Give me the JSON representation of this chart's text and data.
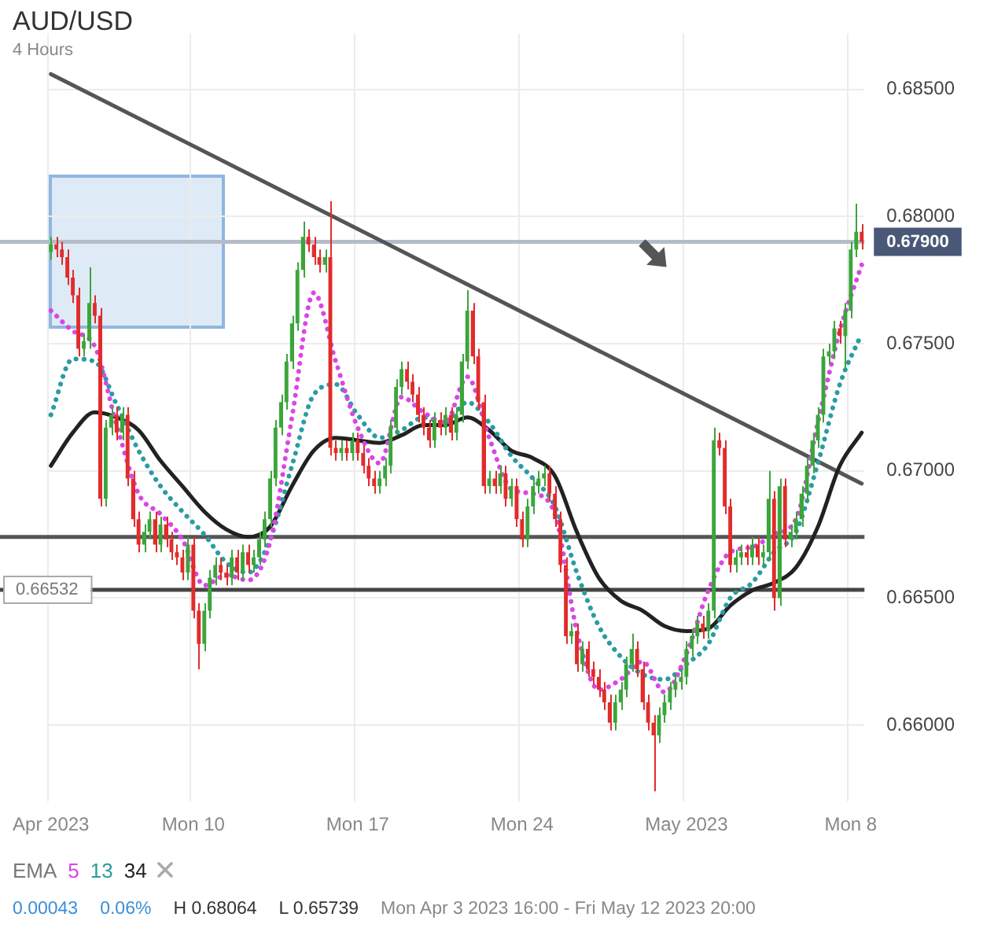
{
  "chart_data": {
    "type": "candlestick",
    "title": "AUD/USD",
    "subtitle": "4 Hours",
    "categories": [
      "Apr 2023",
      null,
      null,
      null,
      null,
      null,
      null,
      null,
      null,
      null,
      null,
      null,
      null,
      null,
      null,
      null,
      null,
      null,
      null,
      null,
      null,
      null,
      null,
      null,
      null,
      null,
      "Mon 10",
      null,
      null,
      null,
      null,
      null,
      null,
      null,
      null,
      null,
      null,
      null,
      null,
      null,
      null,
      null,
      null,
      null,
      null,
      null,
      null,
      null,
      null,
      null,
      null,
      null,
      null,
      null,
      null,
      null,
      "Mon 17",
      null,
      null,
      null,
      null,
      null,
      null,
      null,
      null,
      null,
      null,
      null,
      null,
      null,
      null,
      null,
      null,
      null,
      null,
      null,
      null,
      null,
      null,
      null,
      null,
      null,
      null,
      null,
      null,
      null,
      "Mon 24",
      null,
      null,
      null,
      null,
      null,
      null,
      null,
      null,
      null,
      null,
      null,
      null,
      null,
      null,
      null,
      null,
      null,
      null,
      null,
      null,
      null,
      null,
      null,
      null,
      null,
      null,
      null,
      null,
      null,
      "May 2023",
      null,
      null,
      null,
      null,
      null,
      null,
      null,
      null,
      null,
      null,
      null,
      null,
      null,
      null,
      null,
      null,
      null,
      null,
      null,
      null,
      null,
      null,
      null,
      null,
      null,
      null,
      null,
      null,
      null,
      "Mon 8",
      null,
      null
    ],
    "ohlc": [
      [
        0.6786,
        0.6792,
        0.6783,
        0.6789
      ],
      [
        0.6789,
        0.6792,
        0.6784,
        0.6787
      ],
      [
        0.6787,
        0.679,
        0.6781,
        0.6784
      ],
      [
        0.6784,
        0.6787,
        0.6773,
        0.6776
      ],
      [
        0.6776,
        0.6779,
        0.6766,
        0.6769
      ],
      [
        0.6769,
        0.6772,
        0.6745,
        0.6748
      ],
      [
        0.6748,
        0.6754,
        0.6745,
        0.6751
      ],
      [
        0.6751,
        0.678,
        0.6748,
        0.6766
      ],
      [
        0.6766,
        0.6769,
        0.6758,
        0.6761
      ],
      [
        0.6761,
        0.6764,
        0.6686,
        0.6689
      ],
      [
        0.6689,
        0.672,
        0.6686,
        0.6717
      ],
      [
        0.6717,
        0.6725,
        0.6714,
        0.6722
      ],
      [
        0.6722,
        0.6725,
        0.6712,
        0.6715
      ],
      [
        0.6715,
        0.6725,
        0.6712,
        0.6722
      ],
      [
        0.6722,
        0.6725,
        0.6694,
        0.6697
      ],
      [
        0.6697,
        0.67,
        0.6678,
        0.6681
      ],
      [
        0.6681,
        0.6684,
        0.6668,
        0.6671
      ],
      [
        0.6671,
        0.6679,
        0.6668,
        0.6676
      ],
      [
        0.6676,
        0.6684,
        0.6673,
        0.6681
      ],
      [
        0.6681,
        0.6684,
        0.6668,
        0.6671
      ],
      [
        0.6671,
        0.6682,
        0.6668,
        0.6679
      ],
      [
        0.6679,
        0.6682,
        0.667,
        0.6673
      ],
      [
        0.6673,
        0.6676,
        0.6665,
        0.6668
      ],
      [
        0.6668,
        0.6671,
        0.6663,
        0.6666
      ],
      [
        0.6666,
        0.6669,
        0.6657,
        0.666
      ],
      [
        0.666,
        0.6674,
        0.6657,
        0.6671
      ],
      [
        0.6671,
        0.6674,
        0.6642,
        0.6645
      ],
      [
        0.6645,
        0.6648,
        0.6622,
        0.6632
      ],
      [
        0.6632,
        0.6648,
        0.6629,
        0.6645
      ],
      [
        0.6645,
        0.6661,
        0.6642,
        0.6658
      ],
      [
        0.6658,
        0.6666,
        0.6655,
        0.6663
      ],
      [
        0.6663,
        0.6666,
        0.6657,
        0.666
      ],
      [
        0.666,
        0.6663,
        0.6655,
        0.6658
      ],
      [
        0.6658,
        0.6669,
        0.6655,
        0.6666
      ],
      [
        0.6666,
        0.6669,
        0.6657,
        0.666
      ],
      [
        0.666,
        0.6671,
        0.6657,
        0.6668
      ],
      [
        0.6668,
        0.6671,
        0.666,
        0.6663
      ],
      [
        0.6663,
        0.6669,
        0.666,
        0.6666
      ],
      [
        0.6666,
        0.6676,
        0.6663,
        0.6673
      ],
      [
        0.6673,
        0.6684,
        0.667,
        0.6681
      ],
      [
        0.6681,
        0.67,
        0.6678,
        0.6697
      ],
      [
        0.6697,
        0.672,
        0.6694,
        0.6717
      ],
      [
        0.6717,
        0.673,
        0.6714,
        0.6727
      ],
      [
        0.6727,
        0.6746,
        0.6724,
        0.6743
      ],
      [
        0.6743,
        0.6761,
        0.674,
        0.6758
      ],
      [
        0.6758,
        0.6782,
        0.6755,
        0.6779
      ],
      [
        0.6779,
        0.6798,
        0.6776,
        0.6792
      ],
      [
        0.6792,
        0.6795,
        0.6786,
        0.6789
      ],
      [
        0.6789,
        0.6792,
        0.6781,
        0.6784
      ],
      [
        0.6784,
        0.6787,
        0.6778,
        0.6781
      ],
      [
        0.6781,
        0.6787,
        0.6778,
        0.6784
      ],
      [
        0.6784,
        0.6806,
        0.6706,
        0.6709
      ],
      [
        0.6709,
        0.6712,
        0.6704,
        0.6707
      ],
      [
        0.6707,
        0.6712,
        0.6704,
        0.6709
      ],
      [
        0.6709,
        0.6712,
        0.6704,
        0.6707
      ],
      [
        0.6707,
        0.6715,
        0.6704,
        0.6712
      ],
      [
        0.6712,
        0.6715,
        0.6704,
        0.6707
      ],
      [
        0.6707,
        0.671,
        0.6699,
        0.6702
      ],
      [
        0.6702,
        0.6705,
        0.6694,
        0.6697
      ],
      [
        0.6697,
        0.67,
        0.6691,
        0.6694
      ],
      [
        0.6694,
        0.67,
        0.6691,
        0.6697
      ],
      [
        0.6697,
        0.6705,
        0.6694,
        0.6702
      ],
      [
        0.6702,
        0.672,
        0.6699,
        0.6717
      ],
      [
        0.6717,
        0.6736,
        0.6714,
        0.6733
      ],
      [
        0.6733,
        0.6743,
        0.673,
        0.674
      ],
      [
        0.674,
        0.6743,
        0.6732,
        0.6735
      ],
      [
        0.6735,
        0.6738,
        0.6727,
        0.673
      ],
      [
        0.673,
        0.6733,
        0.6719,
        0.6722
      ],
      [
        0.6722,
        0.6725,
        0.6714,
        0.6717
      ],
      [
        0.6717,
        0.672,
        0.6709,
        0.6712
      ],
      [
        0.6712,
        0.6723,
        0.6709,
        0.672
      ],
      [
        0.672,
        0.6723,
        0.6714,
        0.6717
      ],
      [
        0.6717,
        0.6725,
        0.6714,
        0.6722
      ],
      [
        0.6722,
        0.6725,
        0.6712,
        0.6715
      ],
      [
        0.6715,
        0.6725,
        0.6712,
        0.6722
      ],
      [
        0.6722,
        0.6746,
        0.6719,
        0.6743
      ],
      [
        0.6743,
        0.6771,
        0.674,
        0.6763
      ],
      [
        0.6763,
        0.6766,
        0.6742,
        0.6745
      ],
      [
        0.6745,
        0.6748,
        0.6724,
        0.6727
      ],
      [
        0.6727,
        0.673,
        0.6691,
        0.6694
      ],
      [
        0.6694,
        0.67,
        0.6691,
        0.6697
      ],
      [
        0.6697,
        0.67,
        0.6691,
        0.6694
      ],
      [
        0.6694,
        0.6702,
        0.6691,
        0.6699
      ],
      [
        0.6699,
        0.6702,
        0.6686,
        0.6689
      ],
      [
        0.6689,
        0.6697,
        0.6686,
        0.6694
      ],
      [
        0.6694,
        0.6697,
        0.6678,
        0.6681
      ],
      [
        0.6681,
        0.6684,
        0.667,
        0.6673
      ],
      [
        0.6673,
        0.6689,
        0.667,
        0.6686
      ],
      [
        0.6686,
        0.6697,
        0.6683,
        0.6694
      ],
      [
        0.6694,
        0.67,
        0.6691,
        0.6697
      ],
      [
        0.6697,
        0.6702,
        0.6694,
        0.6699
      ],
      [
        0.6699,
        0.6702,
        0.6688,
        0.6691
      ],
      [
        0.6691,
        0.6694,
        0.6678,
        0.6681
      ],
      [
        0.6681,
        0.6684,
        0.666,
        0.6663
      ],
      [
        0.6663,
        0.6666,
        0.6632,
        0.6635
      ],
      [
        0.6635,
        0.664,
        0.6632,
        0.6637
      ],
      [
        0.6637,
        0.664,
        0.6621,
        0.6624
      ],
      [
        0.6624,
        0.6633,
        0.6621,
        0.663
      ],
      [
        0.663,
        0.6633,
        0.6619,
        0.6622
      ],
      [
        0.6622,
        0.6625,
        0.6616,
        0.6619
      ],
      [
        0.6619,
        0.6622,
        0.6611,
        0.6614
      ],
      [
        0.6614,
        0.6617,
        0.6606,
        0.6609
      ],
      [
        0.6609,
        0.6612,
        0.6598,
        0.6601
      ],
      [
        0.6601,
        0.6612,
        0.6598,
        0.6609
      ],
      [
        0.6609,
        0.6617,
        0.6606,
        0.6614
      ],
      [
        0.6614,
        0.6627,
        0.6611,
        0.6624
      ],
      [
        0.6624,
        0.6636,
        0.6621,
        0.663
      ],
      [
        0.663,
        0.6633,
        0.6619,
        0.6622
      ],
      [
        0.6622,
        0.6625,
        0.6606,
        0.6609
      ],
      [
        0.6609,
        0.6612,
        0.6598,
        0.6601
      ],
      [
        0.6601,
        0.6604,
        0.6574,
        0.6596
      ],
      [
        0.6596,
        0.6607,
        0.6593,
        0.6604
      ],
      [
        0.6604,
        0.6612,
        0.6601,
        0.6609
      ],
      [
        0.6609,
        0.6617,
        0.6606,
        0.6614
      ],
      [
        0.6614,
        0.662,
        0.6611,
        0.6617
      ],
      [
        0.6617,
        0.6622,
        0.6614,
        0.6619
      ],
      [
        0.6619,
        0.6633,
        0.6616,
        0.663
      ],
      [
        0.663,
        0.6638,
        0.6627,
        0.6635
      ],
      [
        0.6635,
        0.6643,
        0.6632,
        0.664
      ],
      [
        0.664,
        0.6643,
        0.6634,
        0.6637
      ],
      [
        0.6637,
        0.6648,
        0.6634,
        0.6645
      ],
      [
        0.6645,
        0.6717,
        0.6642,
        0.6712
      ],
      [
        0.6712,
        0.6715,
        0.6706,
        0.6709
      ],
      [
        0.6709,
        0.6712,
        0.6683,
        0.6686
      ],
      [
        0.6686,
        0.6689,
        0.666,
        0.6663
      ],
      [
        0.6663,
        0.6669,
        0.666,
        0.6666
      ],
      [
        0.6666,
        0.6671,
        0.6663,
        0.6668
      ],
      [
        0.6668,
        0.6671,
        0.6663,
        0.6666
      ],
      [
        0.6666,
        0.6674,
        0.6663,
        0.6671
      ],
      [
        0.6671,
        0.6674,
        0.6663,
        0.6666
      ],
      [
        0.6666,
        0.6671,
        0.6663,
        0.6668
      ],
      [
        0.6668,
        0.67,
        0.6665,
        0.6689
      ],
      [
        0.6689,
        0.6692,
        0.6645,
        0.665
      ],
      [
        0.665,
        0.6697,
        0.6647,
        0.6694
      ],
      [
        0.6694,
        0.6697,
        0.667,
        0.6673
      ],
      [
        0.6673,
        0.6679,
        0.667,
        0.6676
      ],
      [
        0.6676,
        0.6684,
        0.6673,
        0.6681
      ],
      [
        0.6681,
        0.6694,
        0.6678,
        0.6691
      ],
      [
        0.6691,
        0.6705,
        0.6688,
        0.6702
      ],
      [
        0.6702,
        0.6715,
        0.6699,
        0.6712
      ],
      [
        0.6712,
        0.6725,
        0.6709,
        0.6722
      ],
      [
        0.6722,
        0.6748,
        0.6719,
        0.6745
      ],
      [
        0.6745,
        0.675,
        0.6742,
        0.6747
      ],
      [
        0.6747,
        0.6759,
        0.6744,
        0.6756
      ],
      [
        0.6756,
        0.6759,
        0.675,
        0.6753
      ],
      [
        0.6753,
        0.6766,
        0.674,
        0.6763
      ],
      [
        0.6763,
        0.679,
        0.676,
        0.6787
      ],
      [
        0.6787,
        0.6805,
        0.6784,
        0.6794
      ],
      [
        0.6794,
        0.6797,
        0.6787,
        0.679
      ]
    ],
    "colors": [
      "#3ba53b",
      "#e22b2b",
      "#e22b2b",
      "#e22b2b",
      "#e22b2b",
      "#e22b2b",
      "#3ba53b",
      "#3ba53b",
      "#e22b2b",
      "#e22b2b",
      "#3ba53b",
      "#3ba53b",
      "#e22b2b",
      "#3ba53b",
      "#e22b2b",
      "#e22b2b",
      "#e22b2b",
      "#3ba53b",
      "#3ba53b",
      "#e22b2b",
      "#3ba53b",
      "#e22b2b",
      "#e22b2b",
      "#e22b2b",
      "#e22b2b",
      "#3ba53b",
      "#e22b2b",
      "#e22b2b",
      "#3ba53b",
      "#3ba53b",
      "#3ba53b",
      "#e22b2b",
      "#e22b2b",
      "#3ba53b",
      "#e22b2b",
      "#3ba53b",
      "#e22b2b",
      "#3ba53b",
      "#3ba53b",
      "#3ba53b",
      "#3ba53b",
      "#3ba53b",
      "#3ba53b",
      "#3ba53b",
      "#3ba53b",
      "#3ba53b",
      "#3ba53b",
      "#e22b2b",
      "#e22b2b",
      "#e22b2b",
      "#3ba53b",
      "#e22b2b",
      "#e22b2b",
      "#3ba53b",
      "#e22b2b",
      "#3ba53b",
      "#e22b2b",
      "#e22b2b",
      "#e22b2b",
      "#e22b2b",
      "#3ba53b",
      "#3ba53b",
      "#3ba53b",
      "#3ba53b",
      "#3ba53b",
      "#e22b2b",
      "#e22b2b",
      "#e22b2b",
      "#e22b2b",
      "#e22b2b",
      "#3ba53b",
      "#e22b2b",
      "#3ba53b",
      "#e22b2b",
      "#3ba53b",
      "#3ba53b",
      "#3ba53b",
      "#e22b2b",
      "#e22b2b",
      "#e22b2b",
      "#3ba53b",
      "#e22b2b",
      "#3ba53b",
      "#e22b2b",
      "#3ba53b",
      "#e22b2b",
      "#e22b2b",
      "#3ba53b",
      "#3ba53b",
      "#3ba53b",
      "#3ba53b",
      "#e22b2b",
      "#e22b2b",
      "#e22b2b",
      "#e22b2b",
      "#3ba53b",
      "#e22b2b",
      "#3ba53b",
      "#e22b2b",
      "#e22b2b",
      "#e22b2b",
      "#e22b2b",
      "#e22b2b",
      "#3ba53b",
      "#3ba53b",
      "#3ba53b",
      "#3ba53b",
      "#e22b2b",
      "#e22b2b",
      "#e22b2b",
      "#e22b2b",
      "#3ba53b",
      "#3ba53b",
      "#3ba53b",
      "#3ba53b",
      "#3ba53b",
      "#3ba53b",
      "#3ba53b",
      "#3ba53b",
      "#e22b2b",
      "#3ba53b",
      "#3ba53b",
      "#e22b2b",
      "#e22b2b",
      "#e22b2b",
      "#3ba53b",
      "#3ba53b",
      "#e22b2b",
      "#3ba53b",
      "#e22b2b",
      "#3ba53b",
      "#3ba53b",
      "#e22b2b",
      "#3ba53b",
      "#e22b2b",
      "#3ba53b",
      "#3ba53b",
      "#3ba53b",
      "#3ba53b",
      "#3ba53b",
      "#3ba53b",
      "#3ba53b",
      "#3ba53b",
      "#3ba53b",
      "#e22b2b",
      "#3ba53b",
      "#3ba53b",
      "#3ba53b",
      "#e22b2b"
    ],
    "series": [
      {
        "name": "5",
        "type": "line",
        "color": "#d946e6",
        "line_style": "dotted",
        "values": [
          0.6763,
          null,
          null,
          null,
          0.6755,
          null,
          null,
          null,
          0.6749,
          null,
          null,
          null,
          0.6718,
          null,
          null,
          null,
          0.6691,
          null,
          null,
          null,
          0.6683,
          null,
          null,
          null,
          0.6673,
          null,
          null,
          null,
          0.6655,
          null,
          null,
          null,
          0.6659,
          null,
          null,
          null,
          0.6657,
          null,
          null,
          null,
          0.6672,
          null,
          null,
          null,
          0.6721,
          null,
          null,
          null,
          0.677,
          null,
          null,
          null,
          0.6743,
          null,
          null,
          null,
          0.6717,
          null,
          null,
          null,
          0.6703,
          null,
          null,
          null,
          0.6729,
          null,
          null,
          null,
          0.6723,
          null,
          null,
          null,
          0.6719,
          null,
          null,
          null,
          0.6737,
          null,
          null,
          null,
          0.6713,
          null,
          null,
          null,
          0.6693,
          null,
          null,
          null,
          0.6691,
          null,
          null,
          null,
          0.6683,
          null,
          null,
          null,
          0.6637,
          null,
          null,
          null,
          0.6614,
          null,
          null,
          null,
          0.6618,
          null,
          null,
          null,
          0.6625,
          null,
          null,
          null,
          0.6613,
          null,
          null,
          null,
          0.6628,
          null,
          null,
          null,
          0.6653,
          null,
          null,
          null,
          0.6668,
          null,
          null,
          null,
          0.667,
          null,
          null,
          null,
          0.6675,
          null,
          null,
          null,
          0.6681,
          null,
          null,
          null,
          0.6719,
          null,
          null,
          null,
          0.6755,
          null,
          null,
          null,
          0.6781
        ]
      },
      {
        "name": "13",
        "type": "line",
        "color": "#2a9ca3",
        "line_style": "dotted",
        "values": [
          0.6722,
          null,
          null,
          null,
          0.6744,
          null,
          null,
          null,
          0.6743,
          null,
          null,
          null,
          0.6726,
          null,
          null,
          null,
          0.6708,
          null,
          null,
          null,
          0.6694,
          null,
          null,
          null,
          0.6684,
          null,
          null,
          null,
          0.6675,
          null,
          null,
          null,
          0.6664,
          null,
          null,
          null,
          0.666,
          null,
          null,
          null,
          0.6673,
          null,
          null,
          null,
          0.6702,
          null,
          null,
          null,
          0.673,
          null,
          null,
          null,
          0.6734,
          null,
          null,
          null,
          0.6722,
          null,
          null,
          null,
          0.6713,
          null,
          null,
          null,
          0.6716,
          null,
          null,
          null,
          0.6721,
          null,
          null,
          null,
          0.6719,
          null,
          null,
          null,
          0.6727,
          null,
          null,
          null,
          0.6719,
          null,
          null,
          null,
          0.6706,
          null,
          null,
          null,
          0.6697,
          null,
          null,
          null,
          0.6686,
          null,
          null,
          null,
          0.666,
          null,
          null,
          null,
          0.6639,
          null,
          null,
          null,
          0.6627,
          null,
          null,
          null,
          0.662,
          null,
          null,
          null,
          0.6618,
          null,
          null,
          null,
          0.6624,
          null,
          null,
          null,
          0.6632,
          null,
          null,
          null,
          0.665,
          null,
          null,
          null,
          0.6656,
          null,
          null,
          null,
          0.6668,
          null,
          null,
          null,
          0.6676,
          null,
          null,
          null,
          0.6703,
          null,
          null,
          null,
          0.6734,
          null,
          null,
          null,
          0.6754
        ]
      },
      {
        "name": "34",
        "type": "line",
        "color": "#222222",
        "line_style": "solid",
        "values": [
          0.6702,
          null,
          null,
          null,
          0.6715,
          null,
          null,
          null,
          0.6723,
          null,
          null,
          null,
          0.6721,
          null,
          null,
          null,
          0.6716,
          null,
          null,
          null,
          0.6704,
          null,
          null,
          null,
          0.6694,
          null,
          null,
          null,
          0.6684,
          null,
          null,
          null,
          0.6677,
          null,
          null,
          null,
          0.6674,
          null,
          null,
          null,
          0.6678,
          null,
          null,
          null,
          0.6694,
          null,
          null,
          null,
          0.6708,
          null,
          null,
          null,
          0.6713,
          null,
          null,
          null,
          0.6712,
          null,
          null,
          null,
          0.6711,
          null,
          null,
          null,
          0.6714,
          null,
          null,
          null,
          0.6718,
          null,
          null,
          null,
          0.6718,
          null,
          null,
          null,
          0.6721,
          null,
          null,
          null,
          0.6716,
          null,
          null,
          null,
          0.6708,
          null,
          null,
          null,
          0.6705,
          null,
          null,
          null,
          0.6698,
          null,
          null,
          null,
          0.6676,
          null,
          null,
          null,
          0.6658,
          null,
          null,
          null,
          0.6649,
          null,
          null,
          null,
          0.6645,
          null,
          null,
          null,
          0.6639,
          null,
          null,
          null,
          0.6637,
          null,
          null,
          null,
          0.6638,
          null,
          null,
          null,
          0.6647,
          null,
          null,
          null,
          0.6653,
          null,
          null,
          null,
          0.6656,
          null,
          null,
          null,
          0.6662,
          null,
          null,
          null,
          0.6678,
          null,
          null,
          null,
          0.6702,
          null,
          null,
          null,
          0.6715
        ]
      },
      {
        "type": "line",
        "color": "#555555",
        "line_style": "solid",
        "values": [
          0.6856,
          null,
          null,
          null,
          null,
          null,
          null,
          null,
          null,
          null,
          null,
          null,
          null,
          null,
          null,
          null,
          null,
          null,
          null,
          null,
          null,
          null,
          null,
          null,
          null,
          null,
          null,
          null,
          null,
          null,
          null,
          null,
          null,
          null,
          null,
          null,
          null,
          null,
          null,
          null,
          null,
          null,
          null,
          null,
          null,
          null,
          null,
          null,
          null,
          null,
          null,
          null,
          null,
          null,
          null,
          null,
          null,
          null,
          null,
          null,
          null,
          null,
          null,
          null,
          null,
          null,
          null,
          null,
          null,
          null,
          null,
          null,
          null,
          null,
          null,
          null,
          null,
          null,
          null,
          null,
          null,
          null,
          null,
          null,
          null,
          null,
          null,
          null,
          null,
          null,
          null,
          null,
          null,
          null,
          null,
          null,
          null,
          null,
          null,
          null,
          null,
          null,
          null,
          null,
          null,
          null,
          null,
          null,
          null,
          null,
          null,
          null,
          null,
          null,
          null,
          null,
          null,
          null,
          null,
          null,
          null,
          null,
          null,
          null,
          null,
          null,
          null,
          null,
          null,
          null,
          null,
          null,
          null,
          null,
          null,
          null,
          null,
          null,
          null,
          null,
          null,
          null,
          null,
          null,
          null,
          null,
          null,
          null,
          0.6695
        ]
      }
    ],
    "ylim": [
      0.657,
      0.6872
    ],
    "yticks": [
      {
        "value": 0.66,
        "label": "0.66000"
      },
      {
        "value": 0.665,
        "label": "0.66500"
      },
      {
        "value": 0.67,
        "label": "0.67000"
      },
      {
        "value": 0.675,
        "label": "0.67500"
      },
      {
        "value": 0.68,
        "label": "0.68000"
      },
      {
        "value": 0.685,
        "label": "0.68500"
      }
    ],
    "ref_lines": [
      {
        "axis": "y",
        "value": 0.6674,
        "color": "#555555"
      },
      {
        "axis": "y",
        "value": 0.66532,
        "label": "0.66532",
        "color": "#444444"
      },
      {
        "axis": "y",
        "value": 0.679,
        "label": "0.67900",
        "color": "#b4bcc8"
      }
    ],
    "grid": true,
    "legend": "bottom left",
    "legend_title": "EMA",
    "annotations": [
      "0.00043",
      "0.06%",
      "H 0.68064",
      "L 0.65739",
      "Mon Apr 3 2023 16:00 - Fri May 12 2023 20:00"
    ]
  }
}
